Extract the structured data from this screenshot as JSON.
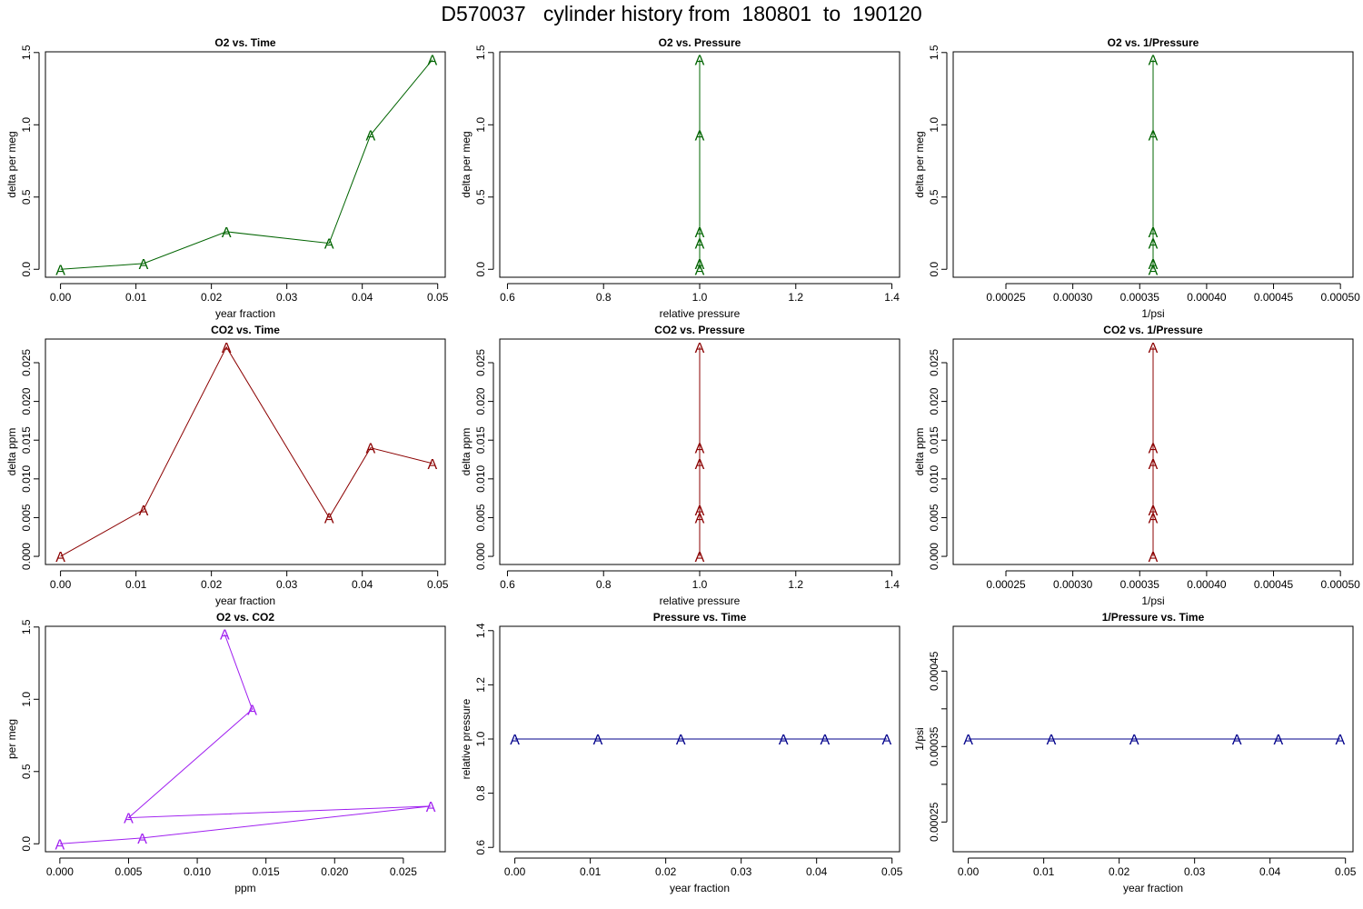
{
  "page": {
    "title": "D570037   cylinder history from  180801  to  190120"
  },
  "chart_data": [
    {
      "id": "o2-time",
      "type": "line",
      "title": "O2 vs. Time",
      "xlabel": "year fraction",
      "ylabel": "delta per meg",
      "color": "#006400",
      "x": [
        0,
        0.011,
        0.022,
        0.0356,
        0.0411,
        0.0493
      ],
      "y": [
        0,
        0.04,
        0.26,
        0.18,
        0.93,
        1.45
      ],
      "xlim": [
        -0.002,
        0.051
      ],
      "ylim": [
        -0.055,
        1.505
      ],
      "xticks": [
        0,
        0.01,
        0.02,
        0.03,
        0.04,
        0.05
      ],
      "xtick_labels": [
        "0.00",
        "0.01",
        "0.02",
        "0.03",
        "0.04",
        "0.05"
      ],
      "yticks": [
        0,
        0.5,
        1.0,
        1.5
      ],
      "ytick_labels": [
        "0.0",
        "0.5",
        "1.0",
        "1.5"
      ],
      "marker": "A"
    },
    {
      "id": "o2-pressure",
      "type": "line",
      "title": "O2 vs. Pressure",
      "xlabel": "relative pressure",
      "ylabel": "delta per meg",
      "color": "#006400",
      "x": [
        1,
        1,
        1,
        1,
        1,
        1
      ],
      "y": [
        0,
        0.04,
        0.26,
        0.18,
        0.93,
        1.45
      ],
      "xlim": [
        0.584,
        1.416
      ],
      "ylim": [
        -0.055,
        1.505
      ],
      "xticks": [
        0.6,
        0.8,
        1.0,
        1.2,
        1.4
      ],
      "xtick_labels": [
        "0.6",
        "0.8",
        "1.0",
        "1.2",
        "1.4"
      ],
      "yticks": [
        0,
        0.5,
        1.0,
        1.5
      ],
      "ytick_labels": [
        "0.0",
        "0.5",
        "1.0",
        "1.5"
      ],
      "marker": "A"
    },
    {
      "id": "o2-invpressure",
      "type": "line",
      "title": "O2 vs. 1/Pressure",
      "xlabel": "1/psi",
      "ylabel": "delta per meg",
      "color": "#006400",
      "x": [
        0.00036,
        0.00036,
        0.00036,
        0.00036,
        0.00036,
        0.00036
      ],
      "y": [
        0,
        0.04,
        0.26,
        0.18,
        0.93,
        1.45
      ],
      "xlim": [
        0.0002106,
        0.0005094
      ],
      "ylim": [
        -0.055,
        1.505
      ],
      "xticks": [
        0.00025,
        0.0003,
        0.00035,
        0.0004,
        0.00045,
        0.0005
      ],
      "xtick_labels": [
        "0.00025",
        "0.00030",
        "0.00035",
        "0.00040",
        "0.00045",
        "0.00050"
      ],
      "yticks": [
        0,
        0.5,
        1.0,
        1.5
      ],
      "ytick_labels": [
        "0.0",
        "0.5",
        "1.0",
        "1.5"
      ],
      "marker": "A"
    },
    {
      "id": "co2-time",
      "type": "line",
      "title": "CO2 vs. Time",
      "xlabel": "year fraction",
      "ylabel": "delta ppm",
      "color": "#8b0000",
      "x": [
        0,
        0.011,
        0.022,
        0.0356,
        0.0411,
        0.0493
      ],
      "y": [
        0,
        0.006,
        0.027,
        0.005,
        0.014,
        0.012
      ],
      "xlim": [
        -0.002,
        0.051
      ],
      "ylim": [
        -0.00105,
        0.02805
      ],
      "xticks": [
        0,
        0.01,
        0.02,
        0.03,
        0.04,
        0.05
      ],
      "xtick_labels": [
        "0.00",
        "0.01",
        "0.02",
        "0.03",
        "0.04",
        "0.05"
      ],
      "yticks": [
        0,
        0.005,
        0.01,
        0.015,
        0.02,
        0.025
      ],
      "ytick_labels": [
        "0.000",
        "0.005",
        "0.010",
        "0.015",
        "0.020",
        "0.025"
      ],
      "marker": "A"
    },
    {
      "id": "co2-pressure",
      "type": "line",
      "title": "CO2 vs. Pressure",
      "xlabel": "relative pressure",
      "ylabel": "delta ppm",
      "color": "#8b0000",
      "x": [
        1,
        1,
        1,
        1,
        1,
        1
      ],
      "y": [
        0,
        0.006,
        0.027,
        0.005,
        0.014,
        0.012
      ],
      "xlim": [
        0.584,
        1.416
      ],
      "ylim": [
        -0.00105,
        0.02805
      ],
      "xticks": [
        0.6,
        0.8,
        1.0,
        1.2,
        1.4
      ],
      "xtick_labels": [
        "0.6",
        "0.8",
        "1.0",
        "1.2",
        "1.4"
      ],
      "yticks": [
        0,
        0.005,
        0.01,
        0.015,
        0.02,
        0.025
      ],
      "ytick_labels": [
        "0.000",
        "0.005",
        "0.010",
        "0.015",
        "0.020",
        "0.025"
      ],
      "marker": "A"
    },
    {
      "id": "co2-invpressure",
      "type": "line",
      "title": "CO2 vs. 1/Pressure",
      "xlabel": "1/psi",
      "ylabel": "delta ppm",
      "color": "#8b0000",
      "x": [
        0.00036,
        0.00036,
        0.00036,
        0.00036,
        0.00036,
        0.00036
      ],
      "y": [
        0,
        0.006,
        0.027,
        0.005,
        0.014,
        0.012
      ],
      "xlim": [
        0.0002106,
        0.0005094
      ],
      "ylim": [
        -0.00105,
        0.02805
      ],
      "xticks": [
        0.00025,
        0.0003,
        0.00035,
        0.0004,
        0.00045,
        0.0005
      ],
      "xtick_labels": [
        "0.00025",
        "0.00030",
        "0.00035",
        "0.00040",
        "0.00045",
        "0.00050"
      ],
      "yticks": [
        0,
        0.005,
        0.01,
        0.015,
        0.02,
        0.025
      ],
      "ytick_labels": [
        "0.000",
        "0.005",
        "0.010",
        "0.015",
        "0.020",
        "0.025"
      ],
      "marker": "A"
    },
    {
      "id": "o2-co2",
      "type": "line",
      "title": "O2 vs. CO2",
      "xlabel": "ppm",
      "ylabel": "per meg",
      "color": "#a020f0",
      "x": [
        0,
        0.006,
        0.027,
        0.005,
        0.014,
        0.012
      ],
      "y": [
        0,
        0.04,
        0.26,
        0.18,
        0.93,
        1.45
      ],
      "xlim": [
        -0.00105,
        0.02805
      ],
      "ylim": [
        -0.055,
        1.505
      ],
      "xticks": [
        0,
        0.005,
        0.01,
        0.015,
        0.02,
        0.025
      ],
      "xtick_labels": [
        "0.000",
        "0.005",
        "0.010",
        "0.015",
        "0.020",
        "0.025"
      ],
      "yticks": [
        0,
        0.5,
        1.0,
        1.5
      ],
      "ytick_labels": [
        "0.0",
        "0.5",
        "1.0",
        "1.5"
      ],
      "marker": "A"
    },
    {
      "id": "pressure-time",
      "type": "line",
      "title": "Pressure vs. Time",
      "xlabel": "year fraction",
      "ylabel": "relative pressure",
      "color": "#00008b",
      "x": [
        0,
        0.011,
        0.022,
        0.0356,
        0.0411,
        0.0493
      ],
      "y": [
        1,
        1,
        1,
        1,
        1,
        1
      ],
      "xlim": [
        -0.002,
        0.051
      ],
      "ylim": [
        0.584,
        1.416
      ],
      "xticks": [
        0,
        0.01,
        0.02,
        0.03,
        0.04,
        0.05
      ],
      "xtick_labels": [
        "0.00",
        "0.01",
        "0.02",
        "0.03",
        "0.04",
        "0.05"
      ],
      "yticks": [
        0.6,
        0.8,
        1.0,
        1.2,
        1.4
      ],
      "ytick_labels": [
        "0.6",
        "0.8",
        "1.0",
        "1.2",
        "1.4"
      ],
      "marker": "A"
    },
    {
      "id": "invpressure-time",
      "type": "line",
      "title": "1/Pressure vs. Time",
      "xlabel": "year fraction",
      "ylabel": "1/psi",
      "color": "#00008b",
      "x": [
        0,
        0.011,
        0.022,
        0.0356,
        0.0411,
        0.0493
      ],
      "y": [
        0.00036,
        0.00036,
        0.00036,
        0.00036,
        0.00036,
        0.00036
      ],
      "xlim": [
        -0.002,
        0.051
      ],
      "ylim": [
        0.0002106,
        0.0005094
      ],
      "xticks": [
        0,
        0.01,
        0.02,
        0.03,
        0.04,
        0.05
      ],
      "xtick_labels": [
        "0.00",
        "0.01",
        "0.02",
        "0.03",
        "0.04",
        "0.05"
      ],
      "yticks": [
        0.00025,
        0.0003,
        0.00035,
        0.0004,
        0.00045
      ],
      "ytick_labels": [
        "0.00025",
        "",
        "0.00035",
        "",
        "0.00045"
      ],
      "marker": "A"
    }
  ]
}
